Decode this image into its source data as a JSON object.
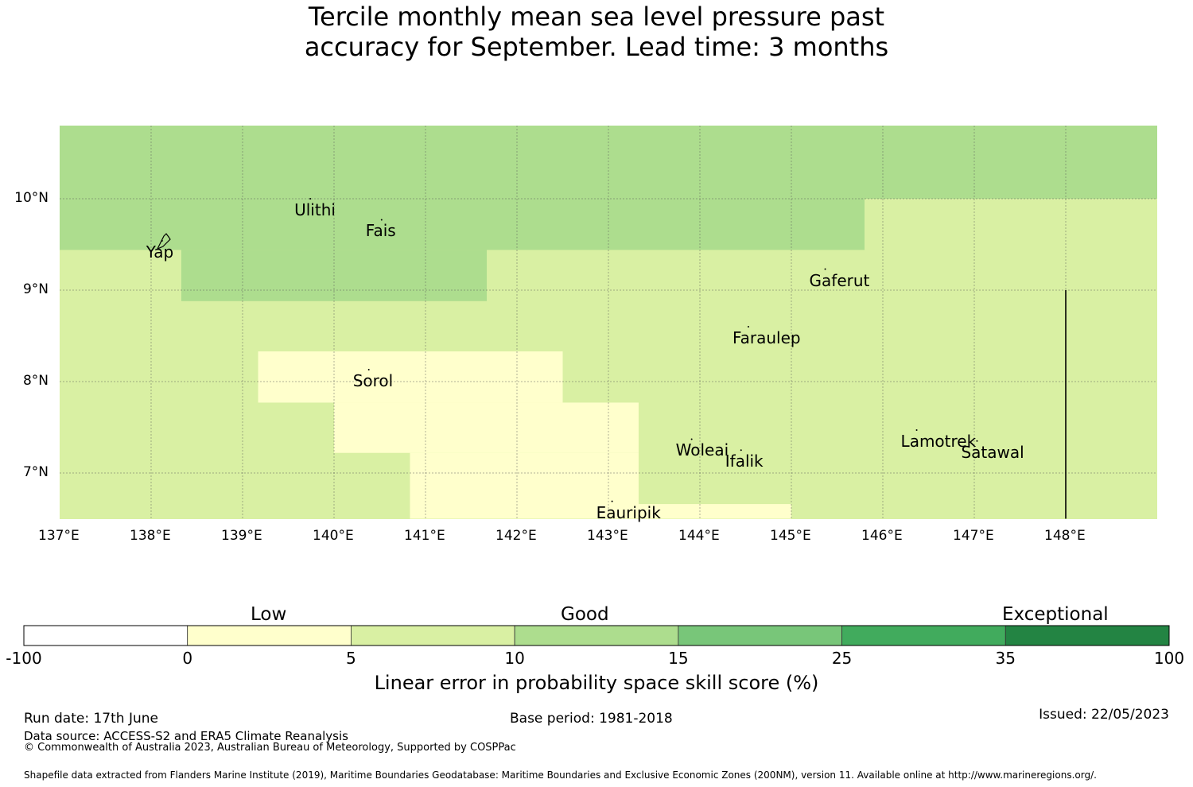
{
  "title": {
    "line1": "Tercile monthly mean sea level pressure past",
    "line2": "accuracy for September. Lead time: 3 months"
  },
  "map": {
    "lon_range": [
      137,
      149
    ],
    "lat_range": [
      6.5,
      10.8
    ],
    "lon_ticks": [
      {
        "value": 137,
        "label": "137°E"
      },
      {
        "value": 138,
        "label": "138°E"
      },
      {
        "value": 139,
        "label": "139°E"
      },
      {
        "value": 140,
        "label": "140°E"
      },
      {
        "value": 141,
        "label": "141°E"
      },
      {
        "value": 142,
        "label": "142°E"
      },
      {
        "value": 143,
        "label": "143°E"
      },
      {
        "value": 144,
        "label": "144°E"
      },
      {
        "value": 145,
        "label": "145°E"
      },
      {
        "value": 146,
        "label": "146°E"
      },
      {
        "value": 147,
        "label": "147°E"
      },
      {
        "value": 148,
        "label": "148°E"
      }
    ],
    "lat_ticks": [
      {
        "value": 10,
        "label": "10°N"
      },
      {
        "value": 9,
        "label": "9°N"
      },
      {
        "value": 8,
        "label": "8°N"
      },
      {
        "value": 7,
        "label": "7°N"
      }
    ],
    "category_colors": {
      "0-5": "#ffffcc",
      "5-10": "#d9f0a3",
      "10-15": "#addd8e"
    },
    "background_category": "5-10",
    "regions": [
      {
        "category": "10-15",
        "lon": [
          137,
          149
        ],
        "lat": [
          10.0,
          10.8
        ]
      },
      {
        "category": "10-15",
        "lon": [
          137,
          145.8
        ],
        "lat": [
          9.44,
          10.0
        ]
      },
      {
        "category": "10-15",
        "lon": [
          138.33,
          141.67
        ],
        "lat": [
          8.88,
          9.44
        ]
      },
      {
        "category": "0-5",
        "lon": [
          139.17,
          142.5
        ],
        "lat": [
          7.77,
          8.33
        ]
      },
      {
        "category": "0-5",
        "lon": [
          140.0,
          142.5
        ],
        "lat": [
          7.22,
          7.77
        ]
      },
      {
        "category": "0-5",
        "lon": [
          140.83,
          143.33
        ],
        "lat": [
          6.5,
          7.22
        ]
      },
      {
        "category": "0-5",
        "lon": [
          142.5,
          143.33
        ],
        "lat": [
          7.22,
          7.77
        ]
      },
      {
        "category": "0-5",
        "lon": [
          143.33,
          145.0
        ],
        "lat": [
          6.5,
          6.66
        ]
      }
    ],
    "eez_boundary": {
      "lon": 148.0,
      "lat": [
        6.5,
        9.0
      ]
    },
    "places": [
      {
        "name": "Yap",
        "lon": 138.12,
        "lat": 9.54
      },
      {
        "name": "Ulithi",
        "lon": 139.74,
        "lat": 10.0
      },
      {
        "name": "Fais",
        "lon": 140.52,
        "lat": 9.77
      },
      {
        "name": "Gaferut",
        "lon": 145.37,
        "lat": 9.23
      },
      {
        "name": "Faraulep",
        "lon": 144.53,
        "lat": 8.6
      },
      {
        "name": "Sorol",
        "lon": 140.38,
        "lat": 8.13
      },
      {
        "name": "Woleai",
        "lon": 143.91,
        "lat": 7.37
      },
      {
        "name": "Ifalik",
        "lon": 144.45,
        "lat": 7.25
      },
      {
        "name": "Lamotrek",
        "lon": 146.37,
        "lat": 7.47
      },
      {
        "name": "Satawal",
        "lon": 147.03,
        "lat": 7.35
      },
      {
        "name": "Eauripik",
        "lon": 143.04,
        "lat": 6.69
      }
    ]
  },
  "colorbar": {
    "categories": [
      {
        "label": "Low"
      },
      {
        "label": "Good"
      },
      {
        "label": "Exceptional"
      }
    ],
    "bins": [
      {
        "from": "-100",
        "to": "0",
        "color": "#ffffff"
      },
      {
        "from": "0",
        "to": "5",
        "color": "#ffffcc"
      },
      {
        "from": "5",
        "to": "10",
        "color": "#d9f0a3"
      },
      {
        "from": "10",
        "to": "15",
        "color": "#addd8e"
      },
      {
        "from": "15",
        "to": "25",
        "color": "#78c679"
      },
      {
        "from": "25",
        "to": "35",
        "color": "#41ab5d"
      },
      {
        "from": "35",
        "to": "100",
        "color": "#238443"
      }
    ],
    "ticks": [
      "-100",
      "0",
      "5",
      "10",
      "15",
      "25",
      "35",
      "100"
    ],
    "label": "Linear error in probability space skill score (%)"
  },
  "footer": {
    "run_date": "Run date: 17th June",
    "base_period": "Base period: 1981-2018",
    "issued": "Issued: 22/05/2023",
    "data_source": "Data source: ACCESS-S2 and ERA5 Climate Reanalysis",
    "copyright": "© Commonwealth of Australia 2023, Australian Bureau of Meteorology, Supported by COSPPac",
    "shapefile": "Shapefile data extracted from Flanders Marine Institute (2019), Maritime Boundaries Geodatabase: Maritime Boundaries and Exclusive Economic Zones (200NM), version 11. Available online at http://www.marineregions.org/."
  }
}
